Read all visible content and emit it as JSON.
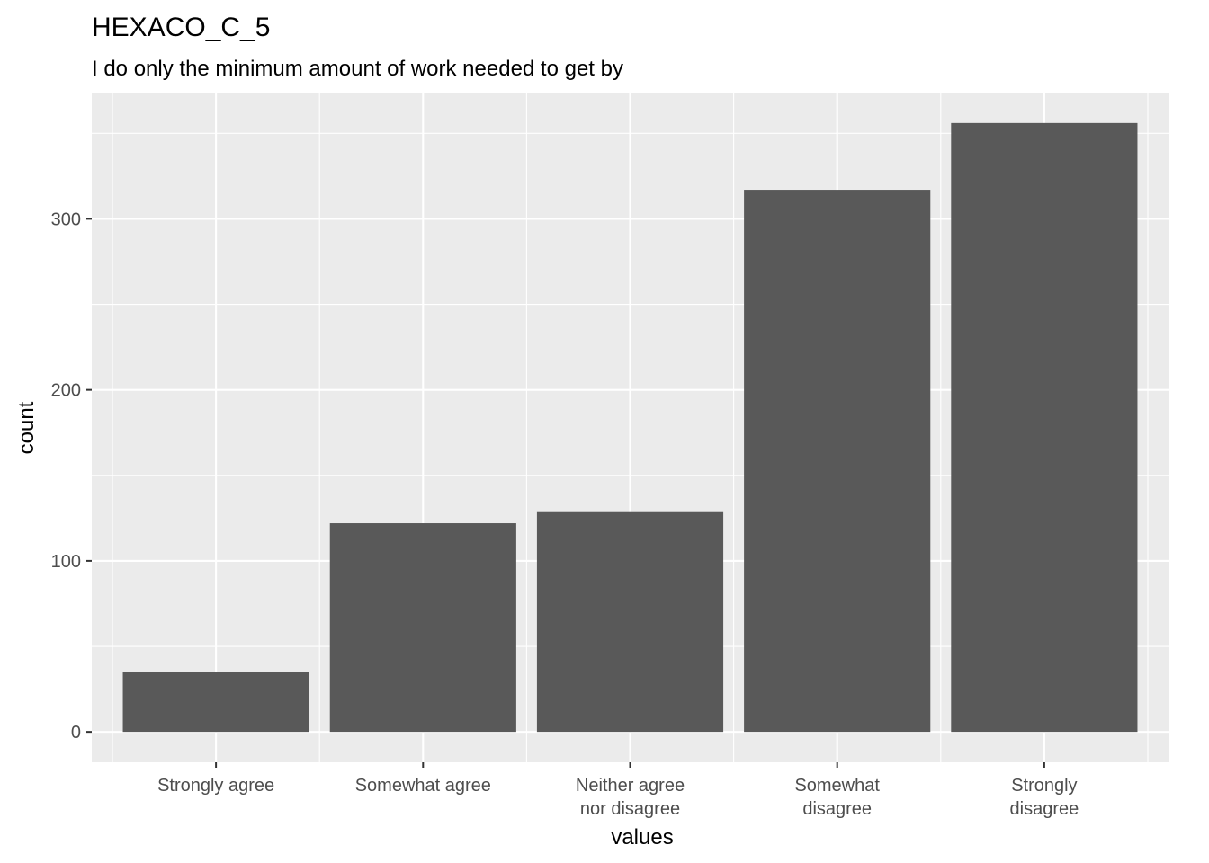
{
  "chart_data": {
    "type": "bar",
    "title": "HEXACO_C_5",
    "subtitle": "I do only the minimum amount of work needed to get by",
    "xlabel": "values",
    "ylabel": "count",
    "categories": [
      [
        "Strongly agree"
      ],
      [
        "Somewhat agree"
      ],
      [
        "Neither agree",
        "nor disagree"
      ],
      [
        "Somewhat",
        "disagree"
      ],
      [
        "Strongly",
        "disagree"
      ]
    ],
    "values": [
      35,
      122,
      129,
      317,
      356
    ],
    "ylim": [
      -17.8,
      373.8
    ],
    "yticks": [
      0,
      100,
      200,
      300
    ],
    "grid": true,
    "colors": {
      "bar": "#595959",
      "panel": "#ebebeb",
      "grid": "#ffffff",
      "tick_text": "#4d4d4d",
      "tick_mark": "#333333"
    }
  }
}
